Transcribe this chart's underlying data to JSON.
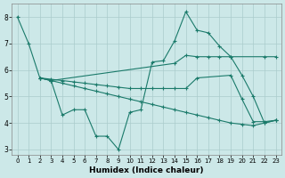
{
  "xlabel": "Humidex (Indice chaleur)",
  "xlim": [
    -0.5,
    23.5
  ],
  "ylim": [
    2.8,
    8.5
  ],
  "yticks": [
    3,
    4,
    5,
    6,
    7,
    8
  ],
  "xticks": [
    0,
    1,
    2,
    3,
    4,
    5,
    6,
    7,
    8,
    9,
    10,
    11,
    12,
    13,
    14,
    15,
    16,
    17,
    18,
    19,
    20,
    21,
    22,
    23
  ],
  "bg_color": "#cce8e8",
  "grid_color": "#aacccc",
  "line_color": "#1a7a6a",
  "line1_x": [
    0,
    1,
    2,
    3,
    4,
    5,
    6,
    7,
    8,
    9,
    10,
    11,
    12,
    13,
    14,
    15,
    16,
    17,
    18,
    19,
    20,
    21,
    22,
    23
  ],
  "line1_y": [
    8.0,
    7.0,
    5.7,
    5.6,
    4.3,
    4.5,
    4.5,
    3.5,
    3.5,
    3.0,
    4.4,
    4.5,
    6.3,
    6.35,
    7.1,
    8.2,
    7.5,
    7.4,
    6.9,
    6.5,
    5.8,
    5.0,
    4.0,
    4.1
  ],
  "line2_x": [
    2,
    3,
    14,
    15,
    16,
    17,
    18,
    19,
    22,
    23
  ],
  "line2_y": [
    5.7,
    5.6,
    6.25,
    6.55,
    6.5,
    6.5,
    6.5,
    6.5,
    6.5,
    6.5
  ],
  "line3_x": [
    2,
    3,
    4,
    5,
    6,
    7,
    8,
    9,
    10,
    11,
    12,
    13,
    14,
    15,
    16,
    19,
    20,
    21,
    22,
    23
  ],
  "line3_y": [
    5.7,
    5.65,
    5.6,
    5.55,
    5.5,
    5.45,
    5.4,
    5.35,
    5.3,
    5.3,
    5.3,
    5.3,
    5.3,
    5.3,
    5.7,
    5.8,
    4.9,
    4.05,
    4.05,
    4.1
  ],
  "line4_x": [
    2,
    3,
    4,
    5,
    6,
    7,
    8,
    9,
    10,
    11,
    12,
    13,
    14,
    15,
    16,
    17,
    18,
    19,
    20,
    21,
    22,
    23
  ],
  "line4_y": [
    5.7,
    5.6,
    5.5,
    5.4,
    5.3,
    5.2,
    5.1,
    5.0,
    4.9,
    4.8,
    4.7,
    4.6,
    4.5,
    4.4,
    4.3,
    4.2,
    4.1,
    4.0,
    3.95,
    3.9,
    4.0,
    4.1
  ]
}
